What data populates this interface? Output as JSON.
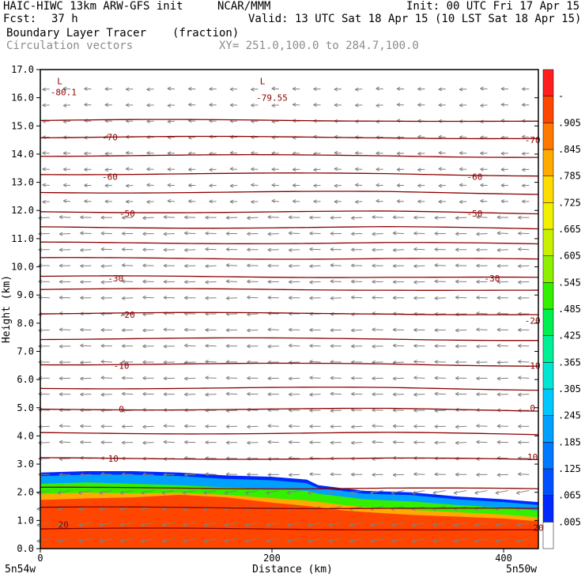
{
  "header": {
    "model": "HAIC-HIWC 13km ARW-GFS init",
    "center": "NCAR/MMM",
    "init": "Init: 00 UTC Fri 17 Apr 15",
    "fcst_label": "Fcst:",
    "fcst_value": "37 h",
    "valid": "Valid: 13 UTC Sat 18 Apr 15 (10 LST Sat 18 Apr 15)",
    "field": "Boundary Layer Tracer",
    "field_units": "(fraction)",
    "overlay": "Circulation vectors",
    "xy": "XY= 251.0,100.0 to 284.7,100.0"
  },
  "chart_data": {
    "type": "heatmap",
    "xlabel": "Distance (km)",
    "ylabel": "Height (km)",
    "xlim": [
      0,
      430
    ],
    "ylim": [
      0,
      17
    ],
    "x_ticks": [
      {
        "value": 0,
        "label": "0"
      },
      {
        "value": 200,
        "label": "200"
      },
      {
        "value": 400,
        "label": "400"
      }
    ],
    "y_ticks": [
      "0.0",
      "1.0",
      "2.0",
      "3.0",
      "4.0",
      "5.0",
      "6.0",
      "7.0",
      "8.0",
      "9.0",
      "10.0",
      "11.0",
      "12.0",
      "13.0",
      "14.0",
      "15.0",
      "16.0",
      "17.0"
    ],
    "x_endpoints": {
      "left": "5n54w",
      "right": "5n50w"
    },
    "colorbar": {
      "labels": [
        ".005",
        ".065",
        ".125",
        ".185",
        ".245",
        ".305",
        ".365",
        ".425",
        ".485",
        ".545",
        ".605",
        ".665",
        ".725",
        ".785",
        ".845",
        ".905",
        "-"
      ],
      "colors": [
        "#ffffff",
        "#0028ff",
        "#0050ff",
        "#0078ff",
        "#00a0ff",
        "#00c8ff",
        "#00e6d2",
        "#00f096",
        "#00f050",
        "#32f000",
        "#8cf000",
        "#c8f000",
        "#f0f000",
        "#ffdc00",
        "#ffaa00",
        "#ff7800",
        "#ff4600",
        "#ff1e1e"
      ]
    },
    "tracer_top_km": {
      "x": [
        0,
        40,
        80,
        120,
        160,
        200,
        230,
        240,
        260,
        280,
        320,
        360,
        400,
        430
      ],
      "outer": [
        2.7,
        2.75,
        2.75,
        2.7,
        2.6,
        2.55,
        2.45,
        2.25,
        2.15,
        2.05,
        2.0,
        1.85,
        1.75,
        1.65
      ],
      "green": [
        2.45,
        2.5,
        2.5,
        2.45,
        2.35,
        2.3,
        2.2,
        2.05,
        1.95,
        1.85,
        1.8,
        1.65,
        1.55,
        1.45
      ],
      "yellow": [
        2.15,
        2.2,
        2.1,
        2.05,
        2.0,
        1.95,
        1.9,
        1.85,
        1.75,
        1.65,
        1.55,
        1.45,
        1.35,
        1.25
      ],
      "red": [
        1.55,
        1.6,
        1.7,
        1.85,
        1.75,
        1.5,
        1.35,
        1.3,
        1.2,
        1.15,
        1.05,
        1.0,
        0.95,
        0.85
      ]
    },
    "temperature_contours": [
      {
        "label": "-80.1",
        "x": 20,
        "y_km": 16.2
      },
      {
        "label": "-79.55",
        "x": 200,
        "y_km": 16.0
      },
      {
        "label": "-70",
        "x": 60,
        "y_km": 14.6
      },
      {
        "label": "-70",
        "x": 425,
        "y_km": 14.5
      },
      {
        "label": "-60",
        "x": 60,
        "y_km": 13.2
      },
      {
        "label": "-60",
        "x": 375,
        "y_km": 13.2
      },
      {
        "label": "-50",
        "x": 75,
        "y_km": 11.9
      },
      {
        "label": "-50",
        "x": 375,
        "y_km": 11.9
      },
      {
        "label": "-30",
        "x": 65,
        "y_km": 9.6
      },
      {
        "label": "-30",
        "x": 390,
        "y_km": 9.6
      },
      {
        "label": "-20",
        "x": 75,
        "y_km": 8.3
      },
      {
        "label": "-20",
        "x": 425,
        "y_km": 8.1
      },
      {
        "label": "-10",
        "x": 70,
        "y_km": 6.5
      },
      {
        "label": "-10",
        "x": 425,
        "y_km": 6.5
      },
      {
        "label": "0",
        "x": 70,
        "y_km": 4.95
      },
      {
        "label": "0",
        "x": 425,
        "y_km": 5.0
      },
      {
        "label": "10",
        "x": 63,
        "y_km": 3.2
      },
      {
        "label": "10",
        "x": 425,
        "y_km": 3.25
      },
      {
        "label": "20",
        "x": 20,
        "y_km": 0.85
      },
      {
        "label": "20",
        "x": 430,
        "y_km": 0.75
      }
    ],
    "low_markers": [
      {
        "label": "L",
        "x": 20,
        "y_km": 16.6
      },
      {
        "label": "L",
        "x": 195,
        "y_km": 16.6
      }
    ],
    "contour_levels_km": [
      0.7,
      1.45,
      2.15,
      3.2,
      4.1,
      4.95,
      5.7,
      6.55,
      7.45,
      8.35,
      9.2,
      9.65,
      10.3,
      10.85,
      11.4,
      11.95,
      12.65,
      13.3,
      13.95,
      14.6,
      15.2
    ]
  }
}
